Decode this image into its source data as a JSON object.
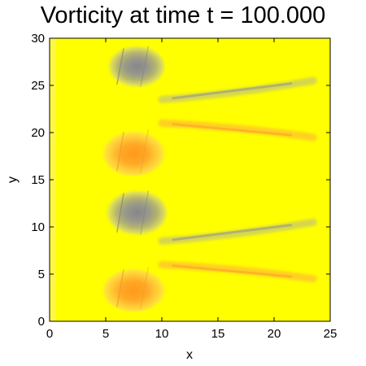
{
  "chart_data": {
    "type": "heatmap",
    "title": "Vorticity at time t = 100.000",
    "xlabel": "x",
    "ylabel": "y",
    "xlim": [
      0,
      25
    ],
    "ylim": [
      0,
      30
    ],
    "xticks": [
      "0",
      "5",
      "10",
      "15",
      "20",
      "25"
    ],
    "yticks": [
      "0",
      "5",
      "10",
      "15",
      "20",
      "25",
      "30"
    ],
    "grid": false,
    "colors": {
      "background": "#ffff00",
      "positive_low": "#ffe633",
      "positive_mid": "#ffc830",
      "positive_high": "#ffa020",
      "negative_low": "#e0e060",
      "negative_mid": "#b0b070",
      "negative_high": "#8c8c88"
    },
    "vortices": [
      {
        "sign": "negative",
        "x": 7.5,
        "y": 27.0,
        "rx": 2.8,
        "ry": 2.4
      },
      {
        "sign": "positive",
        "x": 7.5,
        "y": 18.0,
        "rx": 3.0,
        "ry": 2.6
      },
      {
        "sign": "negative",
        "x": 7.5,
        "y": 11.5,
        "rx": 3.0,
        "ry": 2.6
      },
      {
        "sign": "positive",
        "x": 7.5,
        "y": 3.5,
        "rx": 3.0,
        "ry": 2.5
      }
    ],
    "wakes": [
      {
        "sign": "negative",
        "x0": 10,
        "y0": 23.5,
        "x1": 23.5,
        "y1": 25.5
      },
      {
        "sign": "positive",
        "x0": 10,
        "y0": 21.0,
        "x1": 23.5,
        "y1": 19.5
      },
      {
        "sign": "negative",
        "x0": 10,
        "y0": 8.5,
        "x1": 23.5,
        "y1": 10.5
      },
      {
        "sign": "positive",
        "x0": 10,
        "y0": 6.0,
        "x1": 23.5,
        "y1": 4.5
      }
    ]
  }
}
